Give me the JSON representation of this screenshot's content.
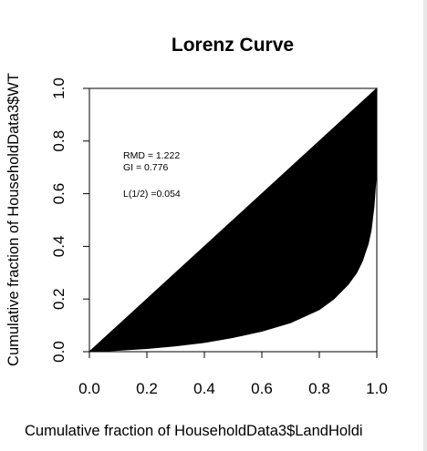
{
  "chart_data": {
    "type": "area",
    "title": "Lorenz Curve",
    "xlabel": "Cumulative fraction of HouseholdData3$LandHoldi",
    "ylabel": "Cumulative fraction of HouseholdData3$WT",
    "xlim": [
      0,
      1
    ],
    "ylim": [
      0,
      1
    ],
    "x_ticks": [
      "0.0",
      "0.2",
      "0.4",
      "0.6",
      "0.8",
      "1.0"
    ],
    "y_ticks": [
      "0.0",
      "0.2",
      "0.4",
      "0.6",
      "0.8",
      "1.0"
    ],
    "grid": false,
    "fill_color": "#000000",
    "equality_line": {
      "x": [
        0,
        1
      ],
      "y": [
        0,
        1
      ]
    },
    "lorenz_curve": {
      "x": [
        0,
        0.1,
        0.2,
        0.3,
        0.4,
        0.5,
        0.6,
        0.7,
        0.8,
        0.85,
        0.9,
        0.93,
        0.95,
        0.97,
        0.98,
        0.99,
        1.0
      ],
      "y": [
        0,
        0.005,
        0.012,
        0.022,
        0.035,
        0.054,
        0.078,
        0.11,
        0.16,
        0.2,
        0.255,
        0.3,
        0.345,
        0.41,
        0.46,
        0.55,
        0.7
      ]
    },
    "annotations": {
      "rmd": "RMD = 1.222",
      "gi": "GI =     0.776",
      "l_half": "L(1/2) =0.054"
    }
  }
}
